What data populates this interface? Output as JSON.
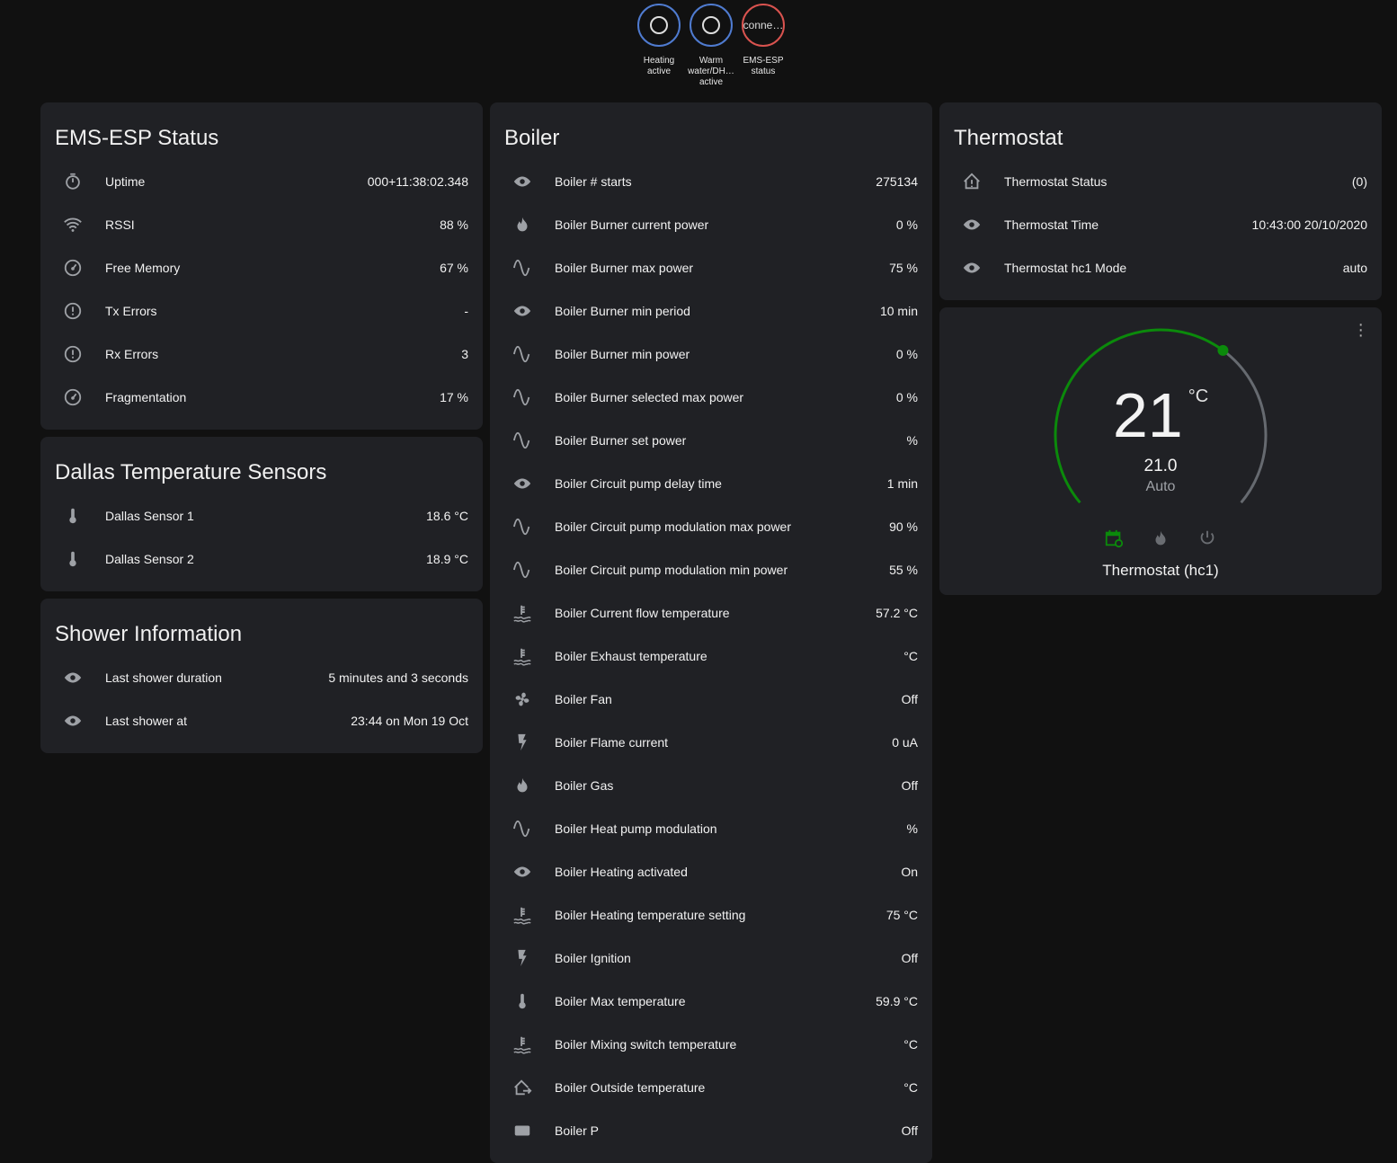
{
  "badges": [
    {
      "label": "Heating active",
      "state": "",
      "color": "#4f7bd0"
    },
    {
      "label": "Warm water/DH… active",
      "state": "",
      "color": "#4f7bd0"
    },
    {
      "label": "EMS-ESP status",
      "state": "conne…",
      "color": "#d9534f"
    }
  ],
  "ems": {
    "title": "EMS-ESP Status",
    "rows": [
      {
        "icon": "timer",
        "label": "Uptime",
        "value": "000+11:38:02.348"
      },
      {
        "icon": "wifi",
        "label": "RSSI",
        "value": "88 %"
      },
      {
        "icon": "gauge",
        "label": "Free Memory",
        "value": "67 %"
      },
      {
        "icon": "alert",
        "label": "Tx Errors",
        "value": "-"
      },
      {
        "icon": "alert",
        "label": "Rx Errors",
        "value": "3"
      },
      {
        "icon": "gauge",
        "label": "Fragmentation",
        "value": "17 %"
      }
    ]
  },
  "dallas": {
    "title": "Dallas Temperature Sensors",
    "rows": [
      {
        "icon": "thermometer",
        "label": "Dallas Sensor 1",
        "value": "18.6 °C"
      },
      {
        "icon": "thermometer",
        "label": "Dallas Sensor 2",
        "value": "18.9 °C"
      }
    ]
  },
  "shower": {
    "title": "Shower Information",
    "rows": [
      {
        "icon": "eye",
        "label": "Last shower duration",
        "value": "5 minutes and 3 seconds"
      },
      {
        "icon": "eye",
        "label": "Last shower at",
        "value": "23:44 on Mon 19 Oct"
      }
    ]
  },
  "boiler": {
    "title": "Boiler",
    "rows": [
      {
        "icon": "eye",
        "label": "Boiler # starts",
        "value": "275134"
      },
      {
        "icon": "fire",
        "label": "Boiler Burner current power",
        "value": "0 %"
      },
      {
        "icon": "sine",
        "label": "Boiler Burner max power",
        "value": "75 %"
      },
      {
        "icon": "eye",
        "label": "Boiler Burner min period",
        "value": "10 min"
      },
      {
        "icon": "sine",
        "label": "Boiler Burner min power",
        "value": "0 %"
      },
      {
        "icon": "sine",
        "label": "Boiler Burner selected max power",
        "value": "0 %"
      },
      {
        "icon": "sine",
        "label": "Boiler Burner set power",
        "value": "%"
      },
      {
        "icon": "eye",
        "label": "Boiler Circuit pump delay time",
        "value": "1 min"
      },
      {
        "icon": "sine",
        "label": "Boiler Circuit pump modulation max power",
        "value": "90 %"
      },
      {
        "icon": "sine",
        "label": "Boiler Circuit pump modulation min power",
        "value": "55 %"
      },
      {
        "icon": "water-thermo",
        "label": "Boiler Current flow temperature",
        "value": "57.2 °C"
      },
      {
        "icon": "water-thermo",
        "label": "Boiler Exhaust temperature",
        "value": "°C"
      },
      {
        "icon": "fan",
        "label": "Boiler Fan",
        "value": "Off"
      },
      {
        "icon": "flash",
        "label": "Boiler Flame current",
        "value": "0 uA"
      },
      {
        "icon": "fire",
        "label": "Boiler Gas",
        "value": "Off"
      },
      {
        "icon": "sine",
        "label": "Boiler Heat pump modulation",
        "value": "%"
      },
      {
        "icon": "eye",
        "label": "Boiler Heating activated",
        "value": "On"
      },
      {
        "icon": "water-thermo",
        "label": "Boiler Heating temperature setting",
        "value": "75 °C"
      },
      {
        "icon": "flash",
        "label": "Boiler Ignition",
        "value": "Off"
      },
      {
        "icon": "thermometer",
        "label": "Boiler Max temperature",
        "value": "59.9 °C"
      },
      {
        "icon": "water-thermo",
        "label": "Boiler Mixing switch temperature",
        "value": "°C"
      },
      {
        "icon": "home-export",
        "label": "Boiler Outside temperature",
        "value": "°C"
      },
      {
        "icon": "pump",
        "label": "Boiler P",
        "value": "Off"
      }
    ]
  },
  "thermostat": {
    "title": "Thermostat",
    "rows": [
      {
        "icon": "home-alert",
        "label": "Thermostat Status",
        "value": "(0)"
      },
      {
        "icon": "eye",
        "label": "Thermostat Time",
        "value": "10:43:00 20/10/2020"
      },
      {
        "icon": "eye",
        "label": "Thermostat hc1 Mode",
        "value": "auto"
      }
    ]
  },
  "climate": {
    "target": "21",
    "unit": "°C",
    "current": "21.0",
    "mode": "Auto",
    "name": "Thermostat (hc1)",
    "min": 5,
    "max": 30,
    "value": 21,
    "active_color": "#0b8a0b",
    "inactive_color": "#666a70"
  }
}
